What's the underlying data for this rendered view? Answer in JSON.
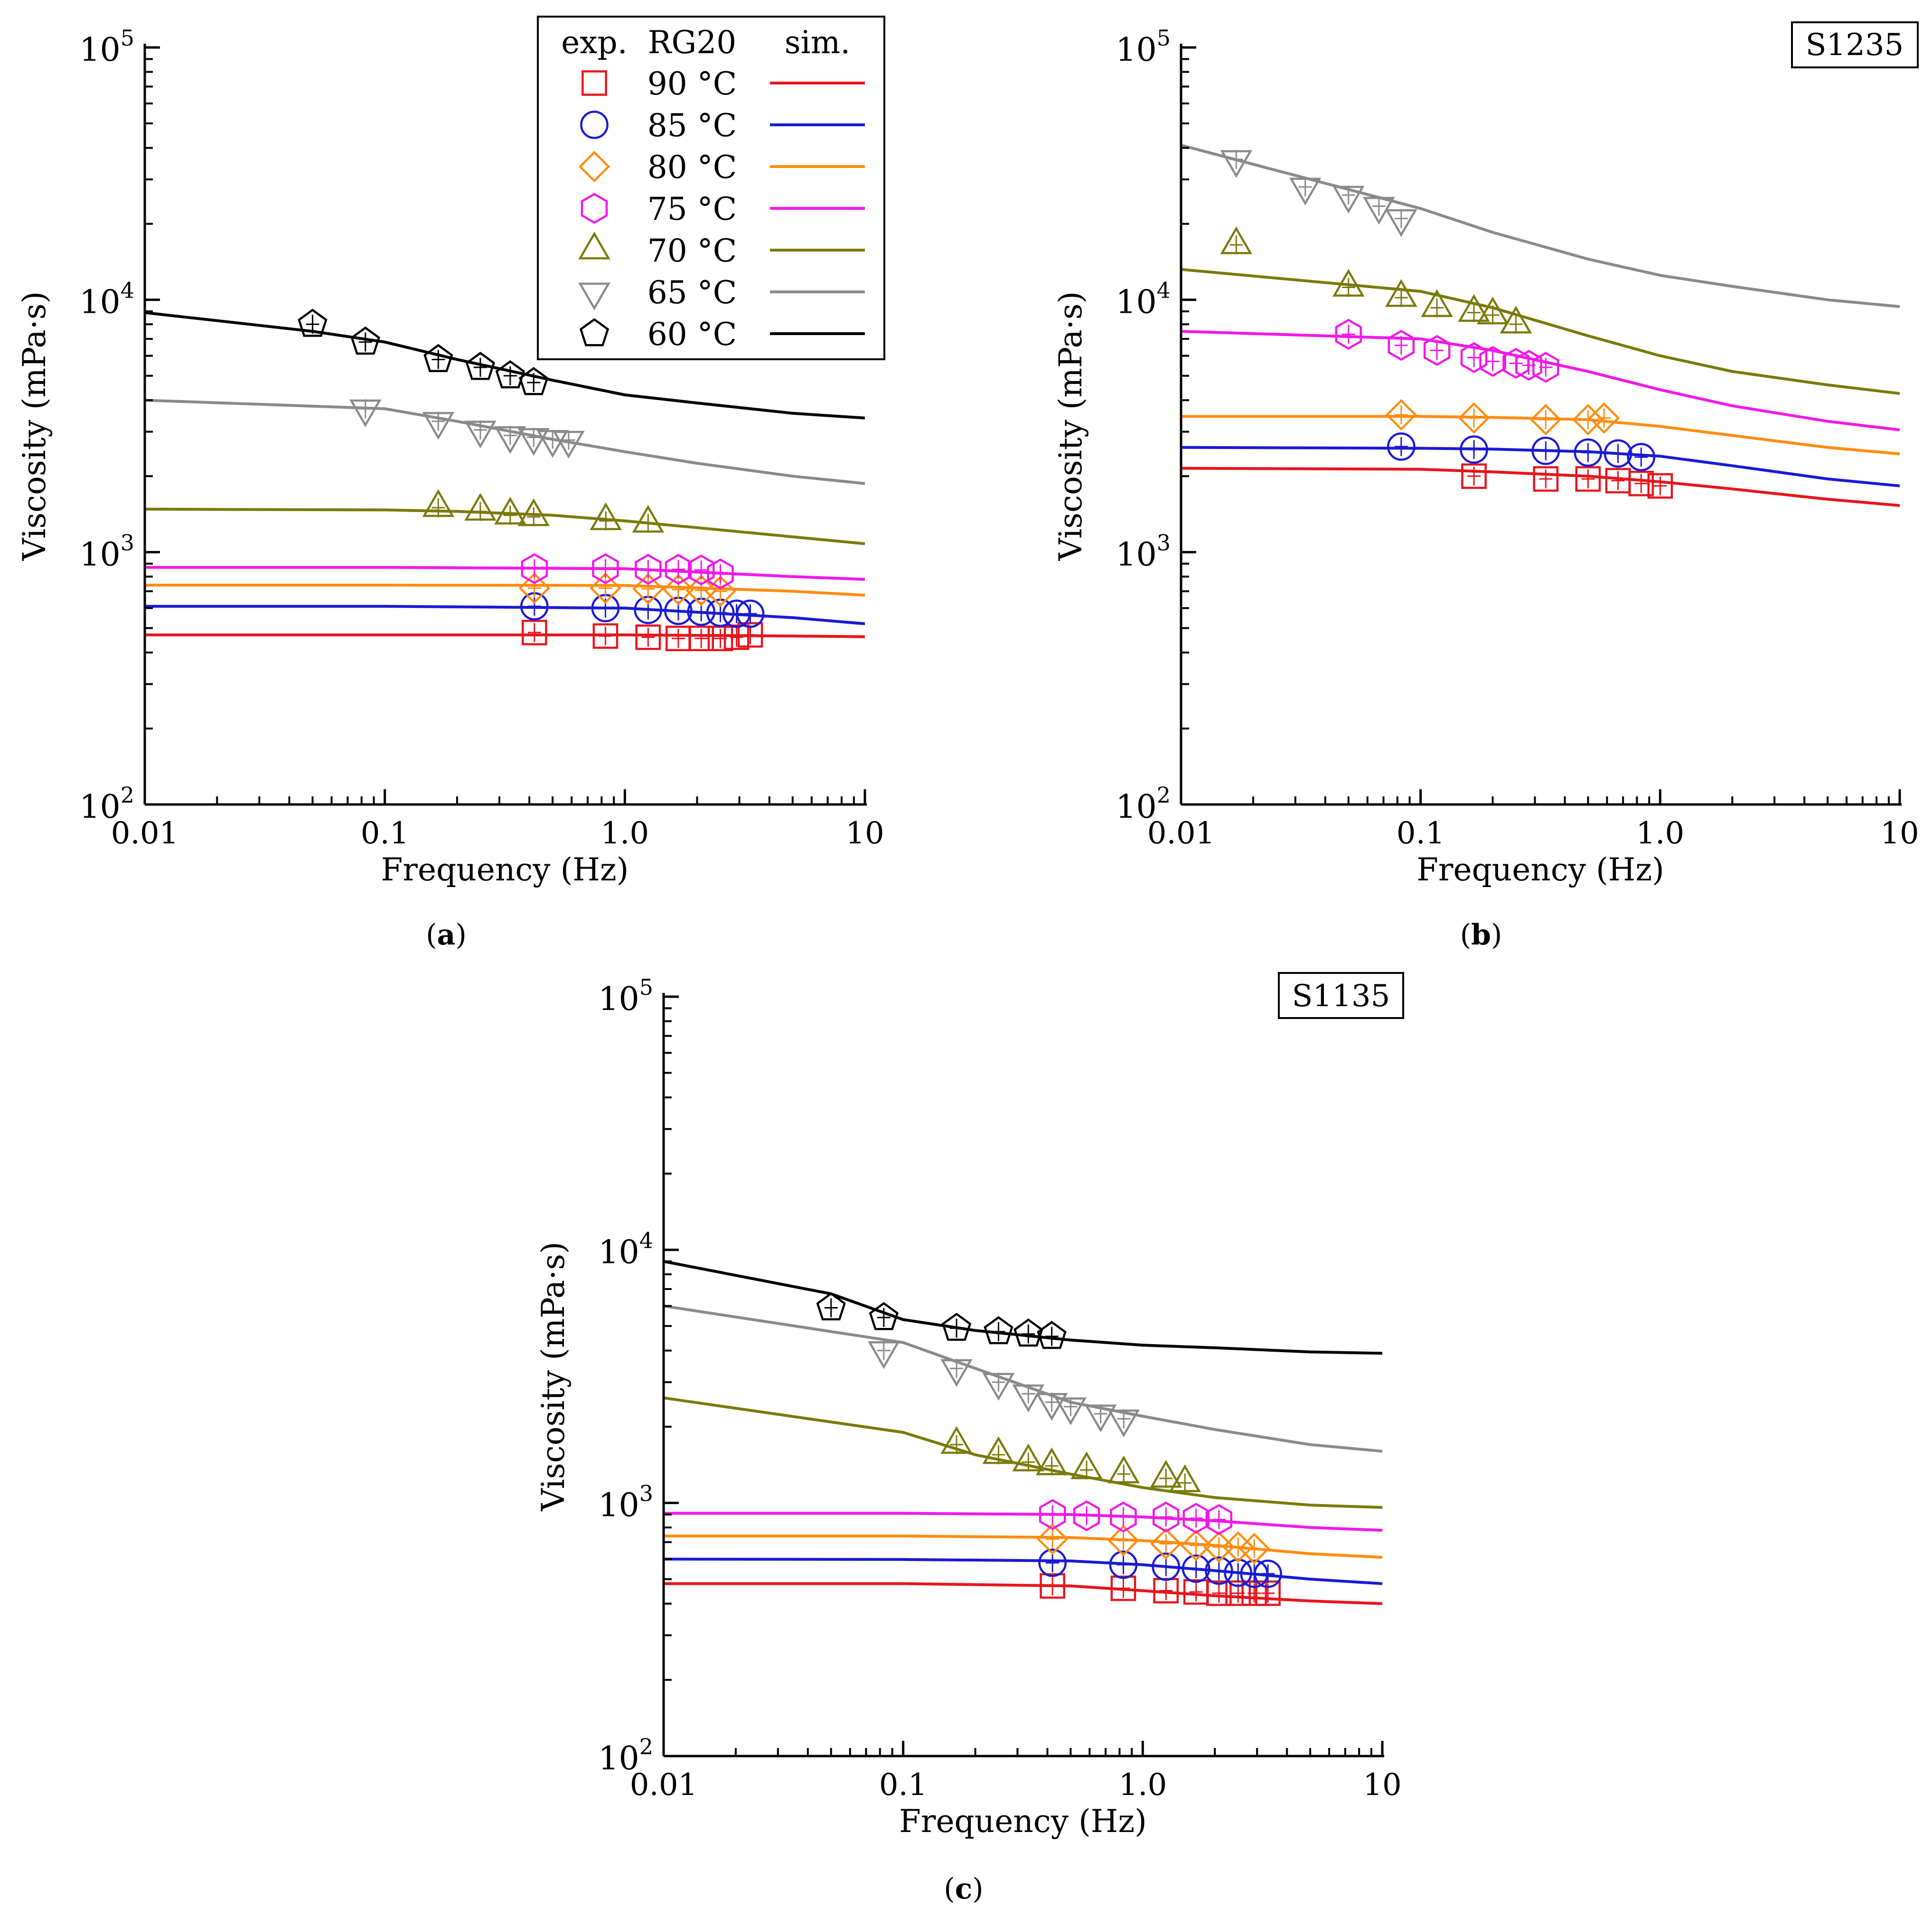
{
  "figure": {
    "legend_header": {
      "exp": "exp.",
      "name": "RG20",
      "sim": "sim."
    }
  },
  "series_styles": [
    {
      "name": "90 °C",
      "temp": 90,
      "color": "#e8141c",
      "marker": "square"
    },
    {
      "name": "85 °C",
      "temp": 85,
      "color": "#1a1ad6",
      "marker": "circle"
    },
    {
      "name": "80 °C",
      "temp": 80,
      "color": "#ff8c10",
      "marker": "diamond"
    },
    {
      "name": "75 °C",
      "temp": 75,
      "color": "#f218e8",
      "marker": "hexagon"
    },
    {
      "name": "70 °C",
      "temp": 70,
      "color": "#7a7a0a",
      "marker": "triangle-up"
    },
    {
      "name": "65 °C",
      "temp": 65,
      "color": "#8a8a8a",
      "marker": "triangle-down"
    },
    {
      "name": "60 °C",
      "temp": 60,
      "color": "#000000",
      "marker": "pentagon"
    }
  ],
  "chart_data": [
    {
      "id": "a",
      "type": "line",
      "panel_label": "a",
      "tag": "",
      "xlabel": "Frequency (Hz)",
      "ylabel": "Viscosity (mPa·s)",
      "xscale": "log",
      "yscale": "log",
      "xlim": [
        0.01,
        10
      ],
      "ylim": [
        100,
        100000
      ],
      "xticks": [
        0.01,
        0.1,
        1,
        10
      ],
      "xtick_labels": [
        "0.01",
        "0.1",
        "1.0",
        "10"
      ],
      "yticks": [
        100,
        1000,
        10000,
        100000
      ],
      "ytick_labels": [
        {
          "base": "10",
          "exp": "2"
        },
        {
          "base": "10",
          "exp": "3"
        },
        {
          "base": "10",
          "exp": "4"
        },
        {
          "base": "10",
          "exp": "5"
        }
      ],
      "legend": "top-center",
      "series": [
        {
          "name": "90 °C",
          "sim": {
            "x": [
              0.01,
              0.1,
              1,
              5,
              10
            ],
            "y": [
              470,
              470,
              470,
              465,
              462
            ]
          },
          "exp": {
            "x": [
              0.42,
              0.83,
              1.25,
              1.67,
              2.08,
              2.5,
              2.92,
              3.33
            ],
            "y": [
              480,
              465,
              460,
              455,
              455,
              455,
              460,
              470
            ]
          }
        },
        {
          "name": "85 °C",
          "sim": {
            "x": [
              0.01,
              0.1,
              1,
              5,
              10
            ],
            "y": [
              610,
              610,
              600,
              550,
              520
            ]
          },
          "exp": {
            "x": [
              0.42,
              0.83,
              1.25,
              1.67,
              2.08,
              2.5,
              2.92,
              3.33
            ],
            "y": [
              610,
              600,
              590,
              585,
              580,
              575,
              570,
              570
            ]
          }
        },
        {
          "name": "80 °C",
          "sim": {
            "x": [
              0.01,
              0.1,
              1,
              5,
              10
            ],
            "y": [
              740,
              740,
              738,
              700,
              675
            ]
          },
          "exp": {
            "x": [
              0.42,
              0.83,
              1.25,
              1.67,
              2.08,
              2.5
            ],
            "y": [
              720,
              720,
              715,
              710,
              705,
              700
            ]
          }
        },
        {
          "name": "75 °C",
          "sim": {
            "x": [
              0.01,
              0.1,
              1,
              5,
              10
            ],
            "y": [
              870,
              870,
              860,
              800,
              780
            ]
          },
          "exp": {
            "x": [
              0.42,
              0.83,
              1.25,
              1.67,
              2.08,
              2.5
            ],
            "y": [
              860,
              860,
              855,
              855,
              850,
              820
            ]
          }
        },
        {
          "name": "70 °C",
          "sim": {
            "x": [
              0.01,
              0.1,
              0.2,
              0.5,
              1,
              2,
              5,
              10
            ],
            "y": [
              1480,
              1470,
              1450,
              1400,
              1330,
              1250,
              1150,
              1080
            ]
          },
          "exp": {
            "x": [
              0.167,
              0.25,
              0.333,
              0.417,
              0.833,
              1.25
            ],
            "y": [
              1500,
              1450,
              1400,
              1380,
              1330,
              1300
            ]
          }
        },
        {
          "name": "65 °C",
          "sim": {
            "x": [
              0.01,
              0.1,
              0.2,
              0.5,
              1,
              2,
              5,
              10
            ],
            "y": [
              4000,
              3700,
              3300,
              2800,
              2500,
              2250,
              2000,
              1870
            ]
          },
          "exp": {
            "x": [
              0.083,
              0.167,
              0.25,
              0.333,
              0.417,
              0.5,
              0.583
            ],
            "y": [
              3700,
              3300,
              3050,
              2900,
              2850,
              2800,
              2780
            ]
          }
        },
        {
          "name": "60 °C",
          "sim": {
            "x": [
              0.01,
              0.05,
              0.1,
              0.2,
              0.5,
              1,
              2,
              5,
              10
            ],
            "y": [
              8900,
              7500,
              6800,
              5800,
              4800,
              4200,
              3900,
              3550,
              3400
            ]
          },
          "exp": {
            "x": [
              0.05,
              0.083,
              0.167,
              0.25,
              0.333,
              0.417
            ],
            "y": [
              8000,
              6800,
              5800,
              5400,
              5000,
              4700
            ]
          }
        }
      ]
    },
    {
      "id": "b",
      "type": "line",
      "panel_label": "b",
      "tag": "S1235",
      "xlabel": "Frequency (Hz)",
      "ylabel": "Viscosity (mPa·s)",
      "xscale": "log",
      "yscale": "log",
      "xlim": [
        0.01,
        10
      ],
      "ylim": [
        100,
        100000
      ],
      "xticks": [
        0.01,
        0.1,
        1,
        10
      ],
      "xtick_labels": [
        "0.01",
        "0.1",
        "1.0",
        "10"
      ],
      "yticks": [
        100,
        1000,
        10000,
        100000
      ],
      "ytick_labels": [
        {
          "base": "10",
          "exp": "2"
        },
        {
          "base": "10",
          "exp": "3"
        },
        {
          "base": "10",
          "exp": "4"
        },
        {
          "base": "10",
          "exp": "5"
        }
      ],
      "legend": "none",
      "series": [
        {
          "name": "90 °C",
          "sim": {
            "x": [
              0.01,
              0.1,
              0.2,
              0.5,
              1,
              2,
              5,
              10
            ],
            "y": [
              2150,
              2130,
              2080,
              2000,
              1900,
              1780,
              1620,
              1530
            ]
          },
          "exp": {
            "x": [
              0.167,
              0.333,
              0.5,
              0.667,
              0.833,
              1.0
            ],
            "y": [
              2000,
              1950,
              1950,
              1920,
              1870,
              1830
            ]
          }
        },
        {
          "name": "85 °C",
          "sim": {
            "x": [
              0.01,
              0.1,
              0.2,
              0.5,
              1,
              2,
              5,
              10
            ],
            "y": [
              2600,
              2580,
              2560,
              2500,
              2400,
              2200,
              1950,
              1830
            ]
          },
          "exp": {
            "x": [
              0.083,
              0.167,
              0.333,
              0.5,
              0.667,
              0.833
            ],
            "y": [
              2620,
              2550,
              2520,
              2480,
              2460,
              2380
            ]
          }
        },
        {
          "name": "80 °C",
          "sim": {
            "x": [
              0.01,
              0.1,
              0.2,
              0.5,
              1,
              2,
              5,
              10
            ],
            "y": [
              3450,
              3450,
              3420,
              3350,
              3150,
              2900,
              2600,
              2450
            ]
          },
          "exp": {
            "x": [
              0.083,
              0.167,
              0.333,
              0.5,
              0.583
            ],
            "y": [
              3500,
              3400,
              3350,
              3350,
              3400
            ]
          }
        },
        {
          "name": "75 °C",
          "sim": {
            "x": [
              0.01,
              0.1,
              0.2,
              0.5,
              1,
              2,
              5,
              10
            ],
            "y": [
              7500,
              7000,
              6300,
              5200,
              4400,
              3800,
              3300,
              3050
            ]
          },
          "exp": {
            "x": [
              0.05,
              0.083,
              0.117,
              0.167,
              0.2,
              0.25,
              0.283,
              0.333
            ],
            "y": [
              7300,
              6600,
              6300,
              5900,
              5700,
              5600,
              5500,
              5400
            ]
          }
        },
        {
          "name": "70 °C",
          "sim": {
            "x": [
              0.01,
              0.1,
              0.2,
              0.5,
              1,
              2,
              5,
              10
            ],
            "y": [
              13200,
              10800,
              9300,
              7200,
              6000,
              5200,
              4600,
              4250
            ]
          },
          "exp": {
            "x": [
              0.017,
              0.05,
              0.083,
              0.117,
              0.167,
              0.2,
              0.25
            ],
            "y": [
              16500,
              11200,
              10200,
              9300,
              8900,
              8700,
              8000
            ]
          }
        },
        {
          "name": "65 °C",
          "sim": {
            "x": [
              0.01,
              0.1,
              0.2,
              0.5,
              1,
              2,
              5,
              10
            ],
            "y": [
              41000,
              23000,
              18500,
              14500,
              12500,
              11300,
              10000,
              9400
            ]
          },
          "exp": {
            "x": [
              0.017,
              0.033,
              0.05,
              0.067,
              0.083
            ],
            "y": [
              36000,
              28000,
              26000,
              23500,
              21000
            ]
          }
        }
      ]
    },
    {
      "id": "c",
      "type": "line",
      "panel_label": "c",
      "tag": "S1135",
      "xlabel": "Frequency (Hz)",
      "ylabel": "Viscosity (mPa·s)",
      "xscale": "log",
      "yscale": "log",
      "xlim": [
        0.01,
        10
      ],
      "ylim": [
        100,
        100000
      ],
      "xticks": [
        0.01,
        0.1,
        1,
        10
      ],
      "xtick_labels": [
        "0.01",
        "0.1",
        "1.0",
        "10"
      ],
      "yticks": [
        100,
        1000,
        10000,
        100000
      ],
      "ytick_labels": [
        {
          "base": "10",
          "exp": "2"
        },
        {
          "base": "10",
          "exp": "3"
        },
        {
          "base": "10",
          "exp": "4"
        },
        {
          "base": "10",
          "exp": "5"
        }
      ],
      "legend": "none",
      "series": [
        {
          "name": "90 °C",
          "sim": {
            "x": [
              0.01,
              0.1,
              0.5,
              1,
              2,
              5,
              10
            ],
            "y": [
              480,
              480,
              470,
              450,
              430,
              410,
              400
            ]
          },
          "exp": {
            "x": [
              0.42,
              0.83,
              1.25,
              1.67,
              2.08,
              2.5,
              2.92,
              3.33
            ],
            "y": [
              470,
              460,
              450,
              445,
              440,
              440,
              440,
              440
            ]
          }
        },
        {
          "name": "85 °C",
          "sim": {
            "x": [
              0.01,
              0.1,
              0.5,
              1,
              2,
              5,
              10
            ],
            "y": [
              600,
              598,
              590,
              570,
              540,
              500,
              480
            ]
          },
          "exp": {
            "x": [
              0.42,
              0.83,
              1.25,
              1.67,
              2.08,
              2.5,
              2.92,
              3.33
            ],
            "y": [
              580,
              570,
              560,
              550,
              540,
              530,
              525,
              525
            ]
          }
        },
        {
          "name": "80 °C",
          "sim": {
            "x": [
              0.01,
              0.1,
              0.5,
              1,
              2,
              5,
              10
            ],
            "y": [
              740,
              740,
              730,
              710,
              680,
              630,
              610
            ]
          },
          "exp": {
            "x": [
              0.42,
              0.83,
              1.25,
              1.67,
              2.08,
              2.5,
              2.92
            ],
            "y": [
              720,
              710,
              690,
              680,
              670,
              670,
              660
            ]
          }
        },
        {
          "name": "75 °C",
          "sim": {
            "x": [
              0.01,
              0.1,
              0.5,
              1,
              2,
              5,
              10
            ],
            "y": [
              910,
              910,
              900,
              880,
              850,
              800,
              780
            ]
          },
          "exp": {
            "x": [
              0.42,
              0.583,
              0.83,
              1.25,
              1.67,
              2.08
            ],
            "y": [
              900,
              890,
              880,
              880,
              870,
              860
            ]
          }
        },
        {
          "name": "70 °C",
          "sim": {
            "x": [
              0.01,
              0.1,
              0.2,
              0.5,
              1,
              2,
              5,
              10
            ],
            "y": [
              2600,
              1900,
              1550,
              1300,
              1150,
              1050,
              980,
              960
            ]
          },
          "exp": {
            "x": [
              0.167,
              0.25,
              0.333,
              0.417,
              0.583,
              0.833,
              1.25,
              1.5
            ],
            "y": [
              1700,
              1550,
              1450,
              1400,
              1350,
              1300,
              1250,
              1200
            ]
          }
        },
        {
          "name": "65 °C",
          "sim": {
            "x": [
              0.01,
              0.1,
              0.2,
              0.5,
              1,
              2,
              5,
              10
            ],
            "y": [
              6000,
              4300,
              3400,
              2500,
              2200,
              1950,
              1700,
              1600
            ]
          },
          "exp": {
            "x": [
              0.083,
              0.167,
              0.25,
              0.333,
              0.417,
              0.5,
              0.667,
              0.833
            ],
            "y": [
              4000,
              3400,
              3000,
              2700,
              2500,
              2400,
              2250,
              2150
            ]
          }
        },
        {
          "name": "60 °C",
          "sim": {
            "x": [
              0.01,
              0.05,
              0.1,
              0.2,
              0.5,
              1,
              2,
              5,
              10
            ],
            "y": [
              9000,
              6700,
              5300,
              4800,
              4400,
              4200,
              4100,
              3950,
              3900
            ]
          },
          "exp": {
            "x": [
              0.05,
              0.083,
              0.167,
              0.25,
              0.333,
              0.417
            ],
            "y": [
              5900,
              5400,
              4900,
              4750,
              4650,
              4550
            ]
          }
        }
      ]
    }
  ]
}
